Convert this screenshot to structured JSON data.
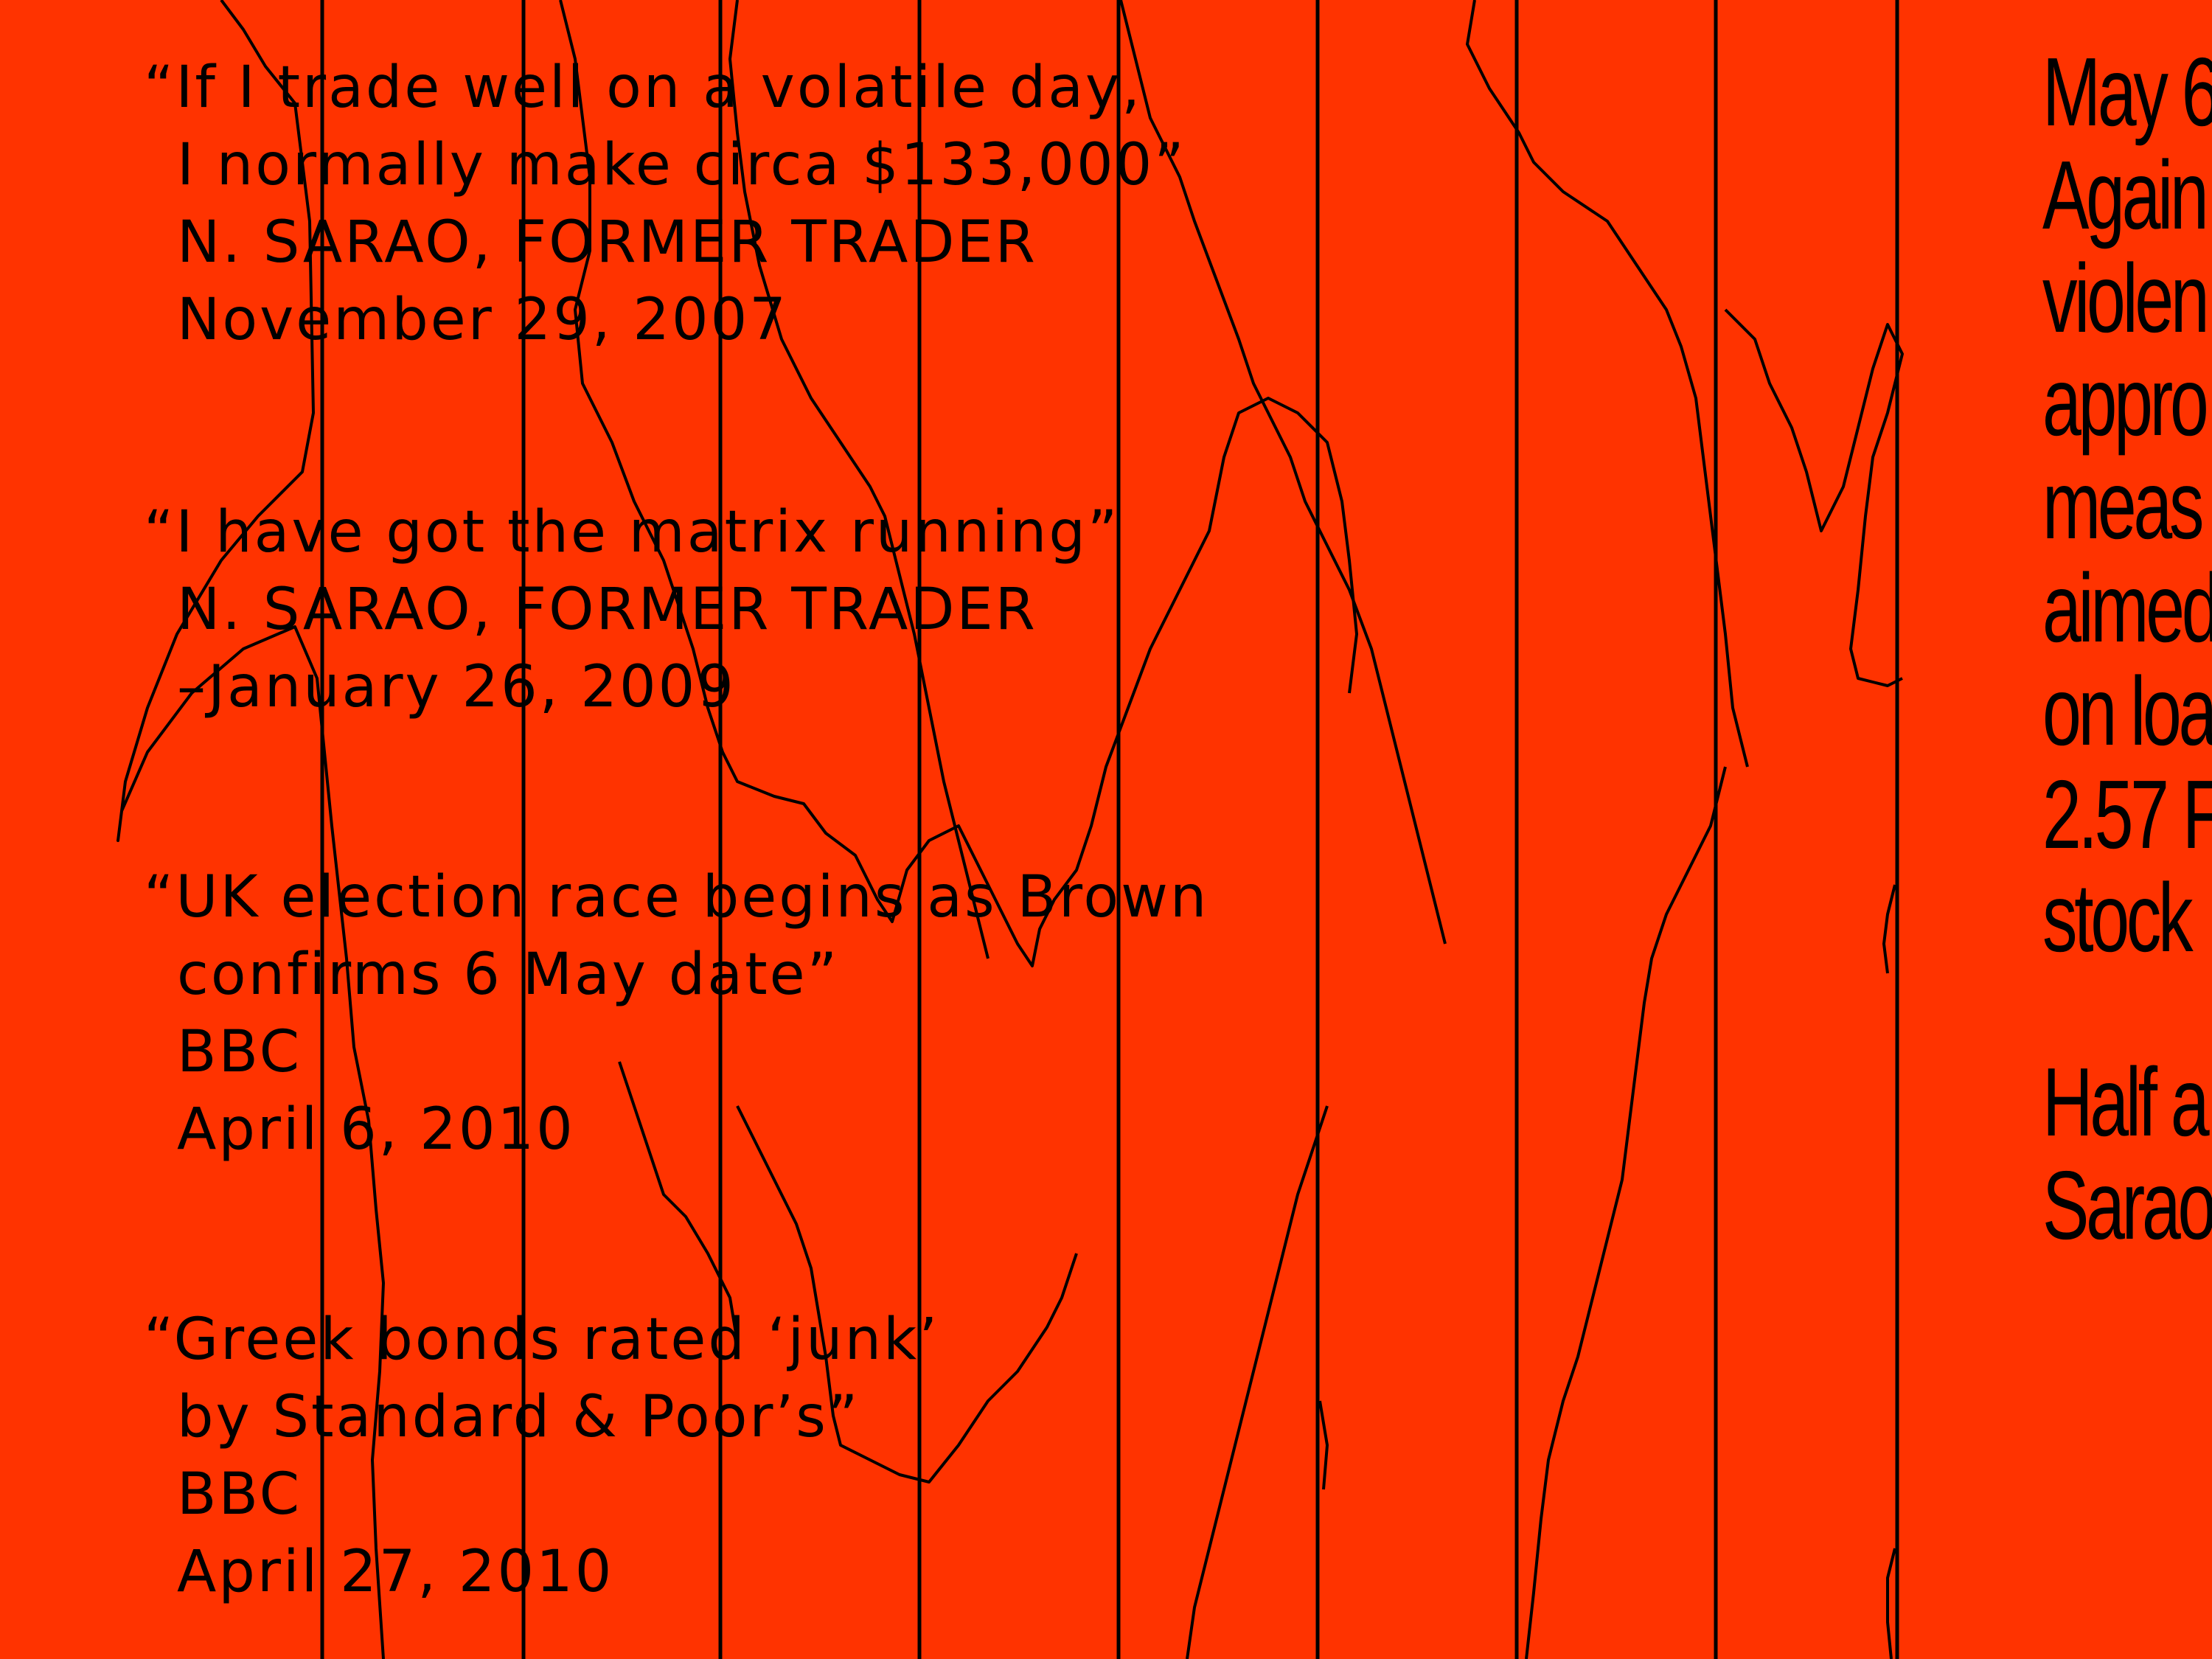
{
  "colors": {
    "background": "#ff3300",
    "ink": "#000000"
  },
  "quotes": [
    {
      "text_line1": "“If I trade well on a volatile day,",
      "text_line2": "I normally make circa $133,000”",
      "attribution": "N. SARAO, FORMER TRADER",
      "date": "November 29, 2007"
    },
    {
      "text_line1": "“I have got the matrix running”",
      "attribution": "N. SARAO, FORMER TRADER",
      "date": "–January 26, 2009"
    },
    {
      "text_line1": "“UK election race begins as Brown",
      "text_line2": "confirms 6 May date”",
      "attribution": "BBC",
      "date": "April 6, 2010"
    },
    {
      "text_line1": "“Greek bonds rated ‘junk’",
      "text_line2": "by Standard & Poor’s”",
      "attribution": "BBC",
      "date": "April 27, 2010"
    }
  ],
  "side_column": {
    "lines_block1": [
      "May 6",
      "Again",
      "violen",
      "appro",
      "meas",
      "aimed",
      "on loa",
      "2.57 F",
      "stock"
    ],
    "lines_block2": [
      "Half a",
      "Sarao"
    ]
  }
}
